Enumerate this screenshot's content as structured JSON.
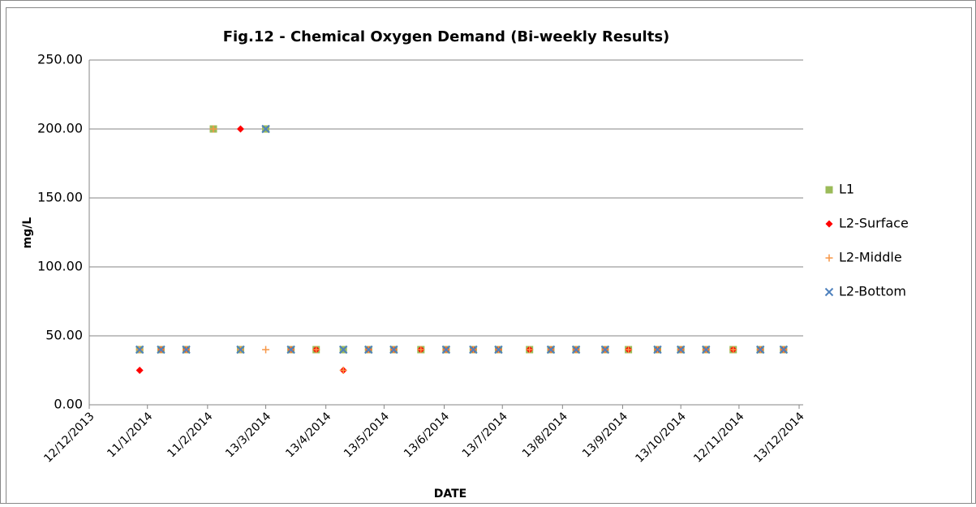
{
  "chart_data": {
    "type": "scatter",
    "title": "Fig.12 - Chemical Oxygen Demand (Bi-weekly Results)",
    "x_label": "DATE",
    "y_label": "mg/L",
    "x": [
      "2014-01-07",
      "2014-01-18",
      "2014-01-31",
      "2014-02-14",
      "2014-02-28",
      "2014-03-13",
      "2014-03-26",
      "2014-04-08",
      "2014-04-22",
      "2014-05-05",
      "2014-05-18",
      "2014-06-01",
      "2014-06-14",
      "2014-06-28",
      "2014-07-11",
      "2014-07-27",
      "2014-08-07",
      "2014-08-20",
      "2014-09-04",
      "2014-09-16",
      "2014-10-01",
      "2014-10-13",
      "2014-10-26",
      "2014-11-09",
      "2014-11-23",
      "2014-12-05"
    ],
    "series": [
      {
        "name": "L1",
        "color": "#9bbb59",
        "marker": "square",
        "values": [
          40,
          40,
          40,
          200,
          40,
          200,
          40,
          40,
          40,
          40,
          40,
          40,
          40,
          40,
          40,
          40,
          40,
          40,
          40,
          40,
          40,
          40,
          40,
          40,
          40,
          40
        ]
      },
      {
        "name": "L2-Surface",
        "color": "#ff0000",
        "marker": "diamond",
        "values": [
          25,
          40,
          40,
          null,
          200,
          null,
          40,
          40,
          25,
          40,
          40,
          40,
          40,
          40,
          40,
          40,
          40,
          40,
          40,
          40,
          40,
          40,
          40,
          40,
          40,
          40
        ]
      },
      {
        "name": "L2-Middle",
        "color": "#f79646",
        "marker": "plus",
        "values": [
          40,
          40,
          40,
          200,
          40,
          40,
          40,
          40,
          25,
          40,
          40,
          40,
          40,
          40,
          40,
          40,
          40,
          40,
          40,
          40,
          40,
          40,
          40,
          40,
          40,
          40
        ]
      },
      {
        "name": "L2-Bottom",
        "color": "#4f81bd",
        "marker": "cross",
        "values": [
          40,
          40,
          40,
          null,
          40,
          200,
          40,
          null,
          40,
          40,
          40,
          null,
          40,
          40,
          40,
          null,
          40,
          40,
          40,
          null,
          40,
          40,
          40,
          null,
          40,
          40
        ]
      }
    ],
    "xlim": [
      "2013-12-12",
      "2014-12-13"
    ],
    "xticks": [
      {
        "value": "2013-12-12",
        "label": "12/12/2013"
      },
      {
        "value": "2014-01-11",
        "label": "11/1/2014"
      },
      {
        "value": "2014-02-11",
        "label": "11/2/2014"
      },
      {
        "value": "2014-03-13",
        "label": "13/3/2014"
      },
      {
        "value": "2014-04-13",
        "label": "13/4/2014"
      },
      {
        "value": "2014-05-13",
        "label": "13/5/2014"
      },
      {
        "value": "2014-06-13",
        "label": "13/6/2014"
      },
      {
        "value": "2014-07-13",
        "label": "13/7/2014"
      },
      {
        "value": "2014-08-13",
        "label": "13/8/2014"
      },
      {
        "value": "2014-09-13",
        "label": "13/9/2014"
      },
      {
        "value": "2014-10-13",
        "label": "13/10/2014"
      },
      {
        "value": "2014-11-12",
        "label": "12/11/2014"
      },
      {
        "value": "2014-12-13",
        "label": "13/12/2014"
      }
    ],
    "ylim": [
      0,
      250
    ],
    "yticks": [
      {
        "value": 0,
        "label": "0.00"
      },
      {
        "value": 50,
        "label": "50.00"
      },
      {
        "value": 100,
        "label": "100.00"
      },
      {
        "value": 150,
        "label": "150.00"
      },
      {
        "value": 200,
        "label": "200.00"
      },
      {
        "value": 250,
        "label": "250.00"
      }
    ],
    "grid": true,
    "legend": "right"
  }
}
